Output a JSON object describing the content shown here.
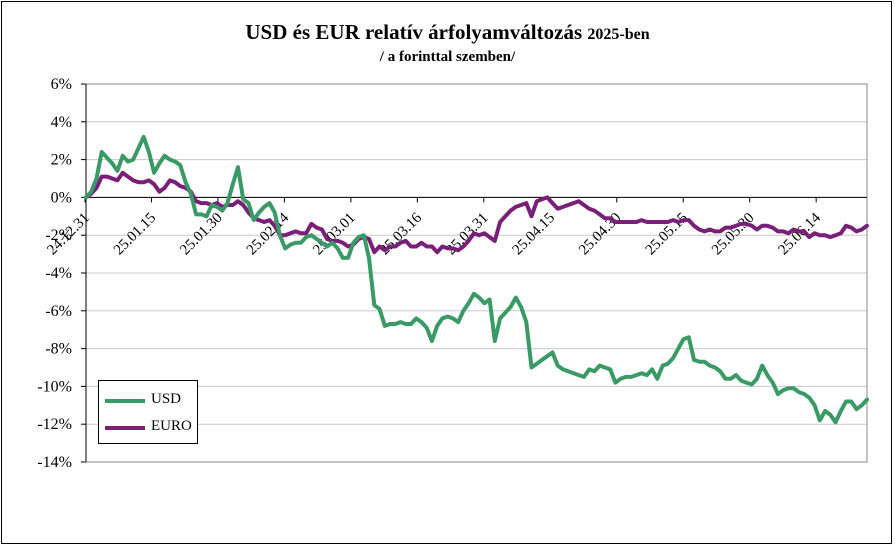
{
  "chart_data": {
    "type": "line",
    "title": "USD és EUR relatív árfolyamváltozás",
    "title_suffix": "2025-ben",
    "subtitle": "/ a forinttal szemben/",
    "yunit": "%",
    "ylim": [
      -14,
      6
    ],
    "yticks": [
      "6%",
      "4%",
      "2%",
      "0%",
      "-2%",
      "-4%",
      "-6%",
      "-8%",
      "-10%",
      "-12%",
      "-14%"
    ],
    "x_tick_labels": [
      "24.12.31",
      "25.01.15",
      "25.01.30",
      "25.02.14",
      "25.03.01",
      "25.03.16",
      "25.03.31",
      "25.04.15",
      "25.04.30",
      "25.05.15",
      "25.05.30",
      "25.06.14"
    ],
    "grid": true,
    "legend_position": "bottom-left",
    "series": [
      {
        "name": "USD",
        "color": "#3A9A66",
        "points": [
          [
            0,
            0
          ],
          [
            1,
            0.3
          ],
          [
            2,
            1.0
          ],
          [
            3,
            2.4
          ],
          [
            4,
            2.1
          ],
          [
            5,
            1.8
          ],
          [
            6,
            1.4
          ],
          [
            7,
            2.2
          ],
          [
            8,
            1.9
          ],
          [
            9,
            2.0
          ],
          [
            10,
            2.6
          ],
          [
            11,
            3.2
          ],
          [
            12,
            2.4
          ],
          [
            13,
            1.3
          ],
          [
            14,
            1.8
          ],
          [
            15,
            2.2
          ],
          [
            16,
            2.0
          ],
          [
            17,
            1.9
          ],
          [
            18,
            1.7
          ],
          [
            19,
            0.8
          ],
          [
            20,
            0.2
          ],
          [
            21,
            -0.9
          ],
          [
            22,
            -0.9
          ],
          [
            23,
            -1.0
          ],
          [
            24,
            -0.4
          ],
          [
            25,
            -0.5
          ],
          [
            26,
            -0.7
          ],
          [
            27,
            -0.3
          ],
          [
            28,
            0.7
          ],
          [
            29,
            1.6
          ],
          [
            30,
            -0.1
          ],
          [
            31,
            -0.3
          ],
          [
            32,
            -1.2
          ],
          [
            33,
            -0.8
          ],
          [
            34,
            -0.5
          ],
          [
            35,
            -0.3
          ],
          [
            36,
            -0.8
          ],
          [
            37,
            -2.0
          ],
          [
            38,
            -2.7
          ],
          [
            39,
            -2.5
          ],
          [
            40,
            -2.4
          ],
          [
            41,
            -2.4
          ],
          [
            42,
            -2.1
          ],
          [
            43,
            -2.0
          ],
          [
            44,
            -2.2
          ],
          [
            45,
            -2.4
          ],
          [
            46,
            -2.6
          ],
          [
            47,
            -2.4
          ],
          [
            48,
            -2.7
          ],
          [
            49,
            -3.2
          ],
          [
            50,
            -3.2
          ],
          [
            51,
            -2.4
          ],
          [
            52,
            -2.1
          ],
          [
            53,
            -2.0
          ],
          [
            54,
            -3.2
          ],
          [
            55,
            -5.7
          ],
          [
            56,
            -5.9
          ],
          [
            57,
            -6.8
          ],
          [
            58,
            -6.7
          ],
          [
            59,
            -6.7
          ],
          [
            60,
            -6.6
          ],
          [
            61,
            -6.7
          ],
          [
            62,
            -6.7
          ],
          [
            63,
            -6.4
          ],
          [
            64,
            -6.6
          ],
          [
            65,
            -6.9
          ],
          [
            66,
            -7.6
          ],
          [
            67,
            -6.8
          ],
          [
            68,
            -6.4
          ],
          [
            69,
            -6.3
          ],
          [
            70,
            -6.4
          ],
          [
            71,
            -6.6
          ],
          [
            72,
            -6.0
          ],
          [
            73,
            -5.6
          ],
          [
            74,
            -5.1
          ],
          [
            75,
            -5.3
          ],
          [
            76,
            -5.6
          ],
          [
            77,
            -5.4
          ],
          [
            78,
            -7.6
          ],
          [
            79,
            -6.4
          ],
          [
            80,
            -6.1
          ],
          [
            81,
            -5.8
          ],
          [
            82,
            -5.3
          ],
          [
            83,
            -5.8
          ],
          [
            84,
            -6.6
          ],
          [
            85,
            -9.0
          ],
          [
            86,
            -8.8
          ],
          [
            87,
            -8.6
          ],
          [
            88,
            -8.4
          ],
          [
            89,
            -8.2
          ],
          [
            90,
            -8.9
          ],
          [
            91,
            -9.1
          ],
          [
            92,
            -9.2
          ],
          [
            93,
            -9.3
          ],
          [
            94,
            -9.4
          ],
          [
            95,
            -9.5
          ],
          [
            96,
            -9.1
          ],
          [
            97,
            -9.2
          ],
          [
            98,
            -8.9
          ],
          [
            99,
            -9.0
          ],
          [
            100,
            -9.1
          ],
          [
            101,
            -9.8
          ],
          [
            102,
            -9.6
          ],
          [
            103,
            -9.5
          ],
          [
            104,
            -9.5
          ],
          [
            105,
            -9.4
          ],
          [
            106,
            -9.3
          ],
          [
            107,
            -9.4
          ],
          [
            108,
            -9.1
          ],
          [
            109,
            -9.6
          ],
          [
            110,
            -8.9
          ],
          [
            111,
            -8.8
          ],
          [
            112,
            -8.5
          ],
          [
            113,
            -8.0
          ],
          [
            114,
            -7.5
          ],
          [
            115,
            -7.4
          ],
          [
            116,
            -8.6
          ],
          [
            117,
            -8.7
          ],
          [
            118,
            -8.7
          ],
          [
            119,
            -8.9
          ],
          [
            120,
            -9.0
          ],
          [
            121,
            -9.2
          ],
          [
            122,
            -9.6
          ],
          [
            123,
            -9.6
          ],
          [
            124,
            -9.4
          ],
          [
            125,
            -9.7
          ],
          [
            126,
            -9.8
          ],
          [
            127,
            -9.9
          ],
          [
            128,
            -9.6
          ],
          [
            129,
            -8.9
          ],
          [
            130,
            -9.4
          ],
          [
            131,
            -9.8
          ],
          [
            132,
            -10.4
          ],
          [
            133,
            -10.2
          ],
          [
            134,
            -10.1
          ],
          [
            135,
            -10.1
          ],
          [
            136,
            -10.3
          ],
          [
            137,
            -10.4
          ],
          [
            138,
            -10.6
          ],
          [
            139,
            -11.0
          ],
          [
            140,
            -11.8
          ],
          [
            141,
            -11.3
          ],
          [
            142,
            -11.5
          ],
          [
            143,
            -11.9
          ],
          [
            144,
            -11.3
          ],
          [
            145,
            -10.8
          ],
          [
            146,
            -10.8
          ],
          [
            147,
            -11.2
          ],
          [
            148,
            -11.0
          ],
          [
            149,
            -10.7
          ]
        ]
      },
      {
        "name": "EURO",
        "color": "#7A1F78",
        "points": [
          [
            0,
            0
          ],
          [
            1,
            0.2
          ],
          [
            2,
            0.5
          ],
          [
            3,
            1.1
          ],
          [
            4,
            1.1
          ],
          [
            5,
            1.0
          ],
          [
            6,
            0.9
          ],
          [
            7,
            1.3
          ],
          [
            8,
            1.1
          ],
          [
            9,
            0.9
          ],
          [
            10,
            0.8
          ],
          [
            11,
            0.8
          ],
          [
            12,
            0.9
          ],
          [
            13,
            0.7
          ],
          [
            14,
            0.3
          ],
          [
            15,
            0.5
          ],
          [
            16,
            0.9
          ],
          [
            17,
            0.8
          ],
          [
            18,
            0.6
          ],
          [
            19,
            0.5
          ],
          [
            20,
            0.3
          ],
          [
            21,
            -0.2
          ],
          [
            22,
            -0.3
          ],
          [
            23,
            -0.3
          ],
          [
            24,
            -0.4
          ],
          [
            25,
            -0.3
          ],
          [
            26,
            -0.5
          ],
          [
            27,
            -0.4
          ],
          [
            28,
            -0.4
          ],
          [
            29,
            -0.2
          ],
          [
            30,
            -0.4
          ],
          [
            31,
            -0.8
          ],
          [
            32,
            -1.1
          ],
          [
            33,
            -1.2
          ],
          [
            34,
            -1.3
          ],
          [
            35,
            -1.2
          ],
          [
            36,
            -1.5
          ],
          [
            37,
            -2.0
          ],
          [
            38,
            -2.0
          ],
          [
            39,
            -1.9
          ],
          [
            40,
            -1.8
          ],
          [
            41,
            -1.9
          ],
          [
            42,
            -1.9
          ],
          [
            43,
            -1.4
          ],
          [
            44,
            -1.6
          ],
          [
            45,
            -1.7
          ],
          [
            46,
            -2.2
          ],
          [
            47,
            -2.3
          ],
          [
            48,
            -2.3
          ],
          [
            49,
            -2.4
          ],
          [
            50,
            -2.6
          ],
          [
            51,
            -2.5
          ],
          [
            52,
            -2.2
          ],
          [
            53,
            -2.1
          ],
          [
            54,
            -2.2
          ],
          [
            55,
            -2.9
          ],
          [
            56,
            -2.6
          ],
          [
            57,
            -2.8
          ],
          [
            58,
            -2.6
          ],
          [
            59,
            -2.6
          ],
          [
            60,
            -2.4
          ],
          [
            61,
            -2.3
          ],
          [
            62,
            -2.6
          ],
          [
            63,
            -2.6
          ],
          [
            64,
            -2.4
          ],
          [
            65,
            -2.6
          ],
          [
            66,
            -2.6
          ],
          [
            67,
            -2.9
          ],
          [
            68,
            -2.6
          ],
          [
            69,
            -2.7
          ],
          [
            70,
            -2.7
          ],
          [
            71,
            -2.8
          ],
          [
            72,
            -2.6
          ],
          [
            73,
            -2.3
          ],
          [
            74,
            -1.9
          ],
          [
            75,
            -2.0
          ],
          [
            76,
            -1.9
          ],
          [
            77,
            -2.1
          ],
          [
            78,
            -2.3
          ],
          [
            79,
            -1.3
          ],
          [
            80,
            -1.0
          ],
          [
            81,
            -0.7
          ],
          [
            82,
            -0.5
          ],
          [
            83,
            -0.4
          ],
          [
            84,
            -0.3
          ],
          [
            85,
            -1.0
          ],
          [
            86,
            -0.2
          ],
          [
            87,
            -0.1
          ],
          [
            88,
            0.0
          ],
          [
            89,
            -0.3
          ],
          [
            90,
            -0.6
          ],
          [
            91,
            -0.5
          ],
          [
            92,
            -0.4
          ],
          [
            93,
            -0.3
          ],
          [
            94,
            -0.2
          ],
          [
            95,
            -0.4
          ],
          [
            96,
            -0.6
          ],
          [
            97,
            -0.7
          ],
          [
            98,
            -0.9
          ],
          [
            99,
            -1.1
          ],
          [
            100,
            -1.1
          ],
          [
            101,
            -1.3
          ],
          [
            102,
            -1.3
          ],
          [
            103,
            -1.3
          ],
          [
            104,
            -1.3
          ],
          [
            105,
            -1.3
          ],
          [
            106,
            -1.2
          ],
          [
            107,
            -1.3
          ],
          [
            108,
            -1.3
          ],
          [
            109,
            -1.3
          ],
          [
            110,
            -1.3
          ],
          [
            111,
            -1.3
          ],
          [
            112,
            -1.2
          ],
          [
            113,
            -1.3
          ],
          [
            114,
            -1.2
          ],
          [
            115,
            -1.2
          ],
          [
            116,
            -1.5
          ],
          [
            117,
            -1.7
          ],
          [
            118,
            -1.8
          ],
          [
            119,
            -1.7
          ],
          [
            120,
            -1.8
          ],
          [
            121,
            -1.8
          ],
          [
            122,
            -1.6
          ],
          [
            123,
            -1.6
          ],
          [
            124,
            -1.5
          ],
          [
            125,
            -1.4
          ],
          [
            126,
            -1.4
          ],
          [
            127,
            -1.5
          ],
          [
            128,
            -1.7
          ],
          [
            129,
            -1.5
          ],
          [
            130,
            -1.5
          ],
          [
            131,
            -1.6
          ],
          [
            132,
            -1.8
          ],
          [
            133,
            -1.8
          ],
          [
            134,
            -1.9
          ],
          [
            135,
            -1.7
          ],
          [
            136,
            -1.8
          ],
          [
            137,
            -1.8
          ],
          [
            138,
            -2.1
          ],
          [
            139,
            -1.9
          ],
          [
            140,
            -2.0
          ],
          [
            141,
            -2.0
          ],
          [
            142,
            -2.1
          ],
          [
            143,
            -2.0
          ],
          [
            144,
            -1.9
          ],
          [
            145,
            -1.5
          ],
          [
            146,
            -1.6
          ],
          [
            147,
            -1.8
          ],
          [
            148,
            -1.7
          ],
          [
            149,
            -1.5
          ]
        ]
      }
    ]
  }
}
